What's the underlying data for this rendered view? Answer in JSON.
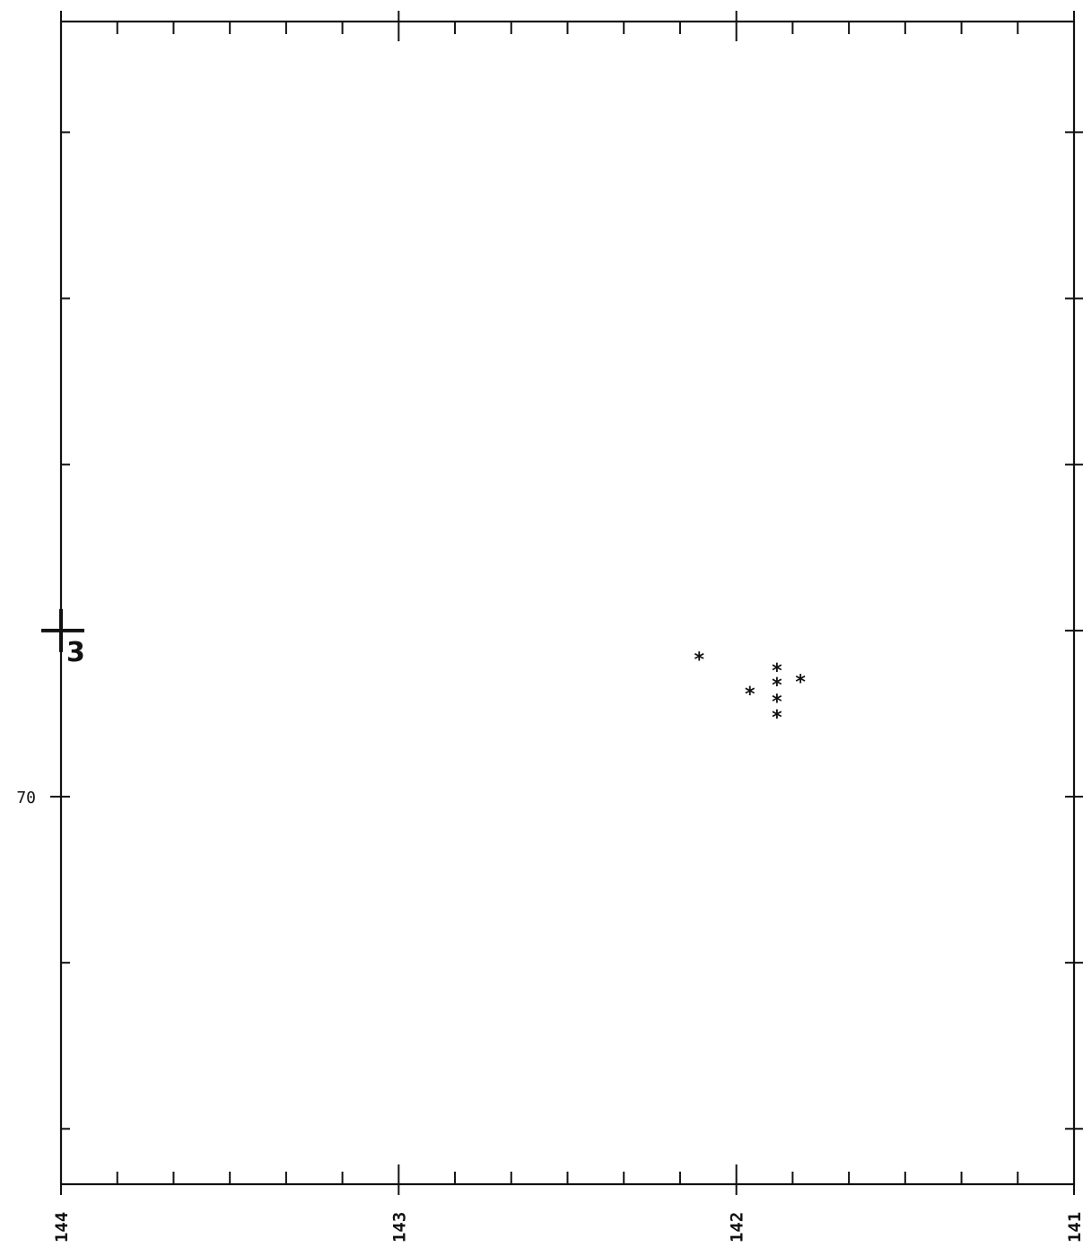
{
  "chart_data": {
    "type": "scatter",
    "title": "",
    "xlabel": "",
    "ylabel": "",
    "x_reversed": true,
    "xlim": [
      144,
      141
    ],
    "ylim": [
      69.65,
      70.7
    ],
    "x_tick_labels": [
      "144",
      "143",
      "142",
      "141"
    ],
    "x_tick_values": [
      144,
      143,
      142,
      141
    ],
    "y_tick_labels": [
      "70"
    ],
    "y_tick_values": [
      70.0
    ],
    "x_minor_step": 0.166667,
    "y_minor_step": 0.15,
    "grid": false,
    "series": [
      {
        "marker": "*",
        "points": [
          {
            "x": 142.11,
            "y": 70.125
          },
          {
            "x": 141.96,
            "y": 70.094
          },
          {
            "x": 141.88,
            "y": 70.115
          },
          {
            "x": 141.88,
            "y": 70.102
          },
          {
            "x": 141.88,
            "y": 70.087
          },
          {
            "x": 141.88,
            "y": 70.073
          },
          {
            "x": 141.81,
            "y": 70.105
          }
        ]
      }
    ],
    "marker_plus": {
      "x": 144.0,
      "y": 70.15,
      "label": "3"
    }
  }
}
